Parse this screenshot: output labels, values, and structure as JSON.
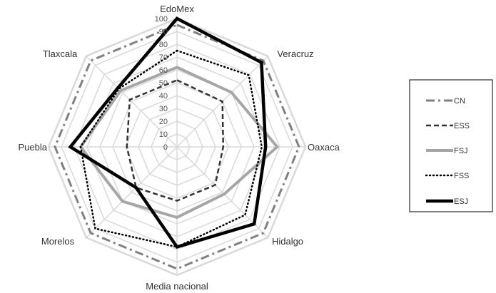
{
  "chart_data": {
    "type": "radar",
    "categories": [
      "EdoMex",
      "Veracruz",
      "Oaxaca",
      "Hidalgo",
      "Media nacional",
      "Morelos",
      "Puebla",
      "Tlaxcala"
    ],
    "ticks": [
      "0",
      "10",
      "20",
      "30",
      "40",
      "50",
      "60",
      "70",
      "80",
      "90",
      "100"
    ],
    "rlim": [
      0,
      100
    ],
    "grid": true,
    "legend_position": "right",
    "series": [
      {
        "name": "CN",
        "values": [
          95,
          95,
          95,
          95,
          95,
          95,
          95,
          95
        ],
        "color": "#808080",
        "dash": "dashdot"
      },
      {
        "name": "ESS",
        "values": [
          52,
          50,
          36,
          42,
          42,
          45,
          39,
          52
        ],
        "color": "#333333",
        "dash": "dashed"
      },
      {
        "name": "FSJ",
        "values": [
          62,
          60,
          78,
          52,
          55,
          60,
          75,
          62
        ],
        "color": "#a6a6a6",
        "dash": "solid-thick"
      },
      {
        "name": "FSS",
        "values": [
          75,
          79,
          66,
          75,
          78,
          90,
          75,
          64
        ],
        "color": "#000000",
        "dash": "dotted"
      },
      {
        "name": "ESJ",
        "values": [
          100,
          93,
          69,
          85,
          78,
          45,
          83,
          65
        ],
        "color": "#000000",
        "dash": "solid-thicker"
      }
    ]
  }
}
